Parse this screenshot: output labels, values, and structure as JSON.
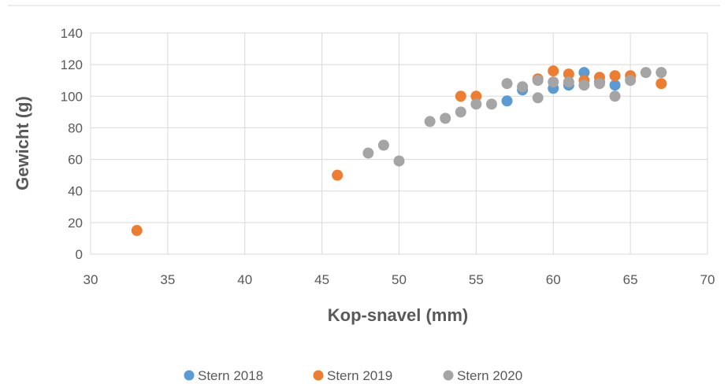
{
  "chart_data": {
    "type": "scatter",
    "title": "",
    "xlabel": "Kop-snavel (mm)",
    "ylabel": "Gewicht (g)",
    "xlim": [
      30,
      70
    ],
    "ylim": [
      0,
      140
    ],
    "xticks": [
      30,
      35,
      40,
      45,
      50,
      55,
      60,
      65,
      70
    ],
    "yticks": [
      0,
      20,
      40,
      60,
      80,
      100,
      120,
      140
    ],
    "grid": true,
    "legend_position": "bottom",
    "series": [
      {
        "name": "Stern 2018",
        "color": "#5b9bd5",
        "points": [
          [
            57,
            97
          ],
          [
            58,
            104
          ],
          [
            60,
            105
          ],
          [
            61,
            107
          ],
          [
            62,
            115
          ],
          [
            63,
            109
          ],
          [
            64,
            107
          ]
        ]
      },
      {
        "name": "Stern 2019",
        "color": "#ed7d31",
        "points": [
          [
            33,
            15
          ],
          [
            46,
            50
          ],
          [
            54,
            100
          ],
          [
            55,
            100
          ],
          [
            59,
            111
          ],
          [
            60,
            116
          ],
          [
            61,
            114
          ],
          [
            62,
            110
          ],
          [
            63,
            112
          ],
          [
            64,
            113
          ],
          [
            65,
            113
          ],
          [
            67,
            108
          ]
        ]
      },
      {
        "name": "Stern 2020",
        "color": "#a5a5a5",
        "points": [
          [
            48,
            64
          ],
          [
            49,
            69
          ],
          [
            50,
            59
          ],
          [
            52,
            84
          ],
          [
            53,
            86
          ],
          [
            54,
            90
          ],
          [
            55,
            95
          ],
          [
            56,
            95
          ],
          [
            57,
            108
          ],
          [
            58,
            106
          ],
          [
            59,
            99
          ],
          [
            59,
            110
          ],
          [
            60,
            109
          ],
          [
            61,
            109
          ],
          [
            62,
            107
          ],
          [
            63,
            108
          ],
          [
            64,
            100
          ],
          [
            65,
            110
          ],
          [
            66,
            115
          ],
          [
            67,
            115
          ]
        ]
      }
    ]
  }
}
